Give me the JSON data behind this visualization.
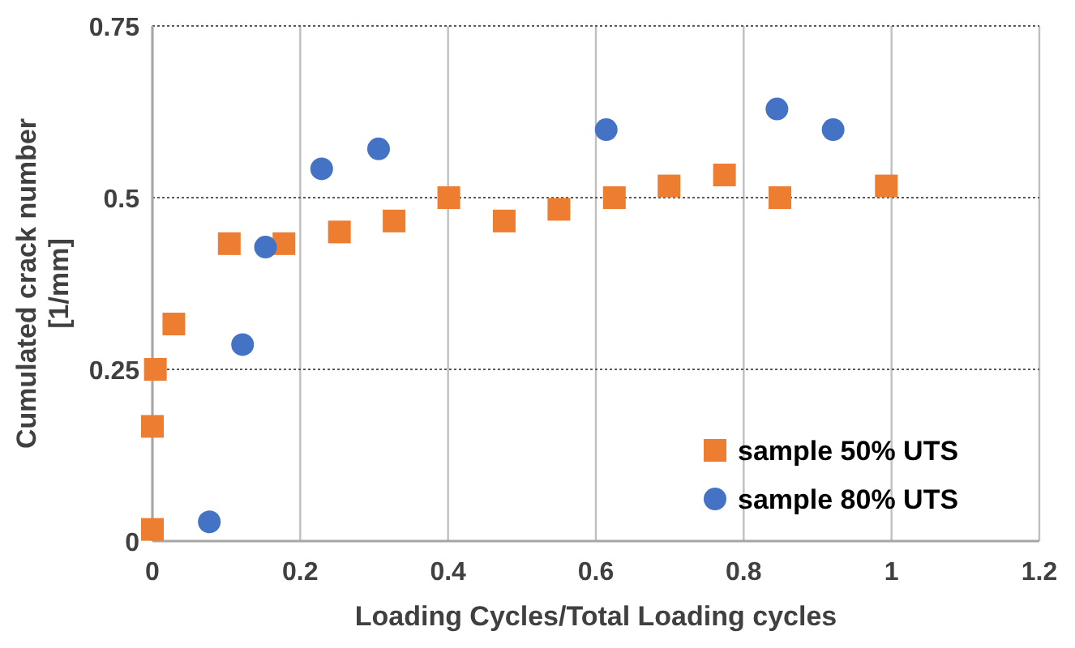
{
  "chart_data": {
    "type": "scatter",
    "xlabel": "Loading Cycles/Total Loading cycles",
    "ylabel": "Cumulated crack number\n[1/mm]",
    "xlim": [
      0,
      1.2
    ],
    "xticks": [
      0,
      0.2,
      0.4,
      0.6,
      0.8,
      1,
      1.2
    ],
    "ylim": [
      0,
      0.75
    ],
    "yticks": [
      0,
      0.25,
      0.5,
      0.75
    ],
    "grid": true,
    "legend": "bottom right",
    "series": [
      {
        "name": "sample 50% UTS",
        "color": "#ed7d31",
        "marker": "square",
        "x": [
          0,
          0,
          0.004,
          0.029,
          0.104,
          0.178,
          0.253,
          0.327,
          0.401,
          0.476,
          0.55,
          0.625,
          0.699,
          0.774,
          0.849,
          0.993
        ],
        "values": [
          0.017,
          0.167,
          0.25,
          0.316,
          0.433,
          0.433,
          0.45,
          0.466,
          0.5,
          0.466,
          0.483,
          0.5,
          0.517,
          0.533,
          0.5,
          0.517
        ]
      },
      {
        "name": "sample 80% UTS",
        "color": "#4472c4",
        "marker": "circle",
        "x": [
          0.077,
          0.122,
          0.153,
          0.229,
          0.306,
          0.614,
          0.845,
          0.921
        ],
        "values": [
          0.028,
          0.286,
          0.428,
          0.542,
          0.571,
          0.599,
          0.629,
          0.599
        ]
      }
    ]
  }
}
